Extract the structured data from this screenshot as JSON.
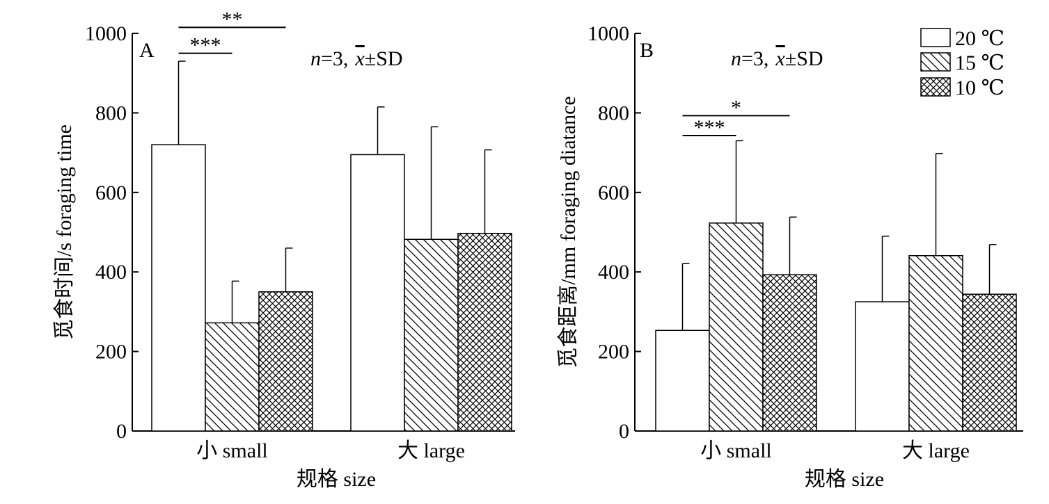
{
  "chart_data": [
    {
      "type": "bar",
      "panel": "A",
      "annotation": {
        "n_label": "n",
        "n_value": "=3,",
        "mean_symbol": "x",
        "sd": "±SD"
      },
      "categories": [
        "小 small",
        "大 large"
      ],
      "xlabel": "规格 size",
      "ylabel": "觅食时间/s foraging time",
      "ylim": [
        0,
        1000
      ],
      "yticks": [
        0,
        200,
        400,
        600,
        800,
        1000
      ],
      "series": [
        {
          "name": "20 ℃",
          "pattern": "blank",
          "values": [
            720,
            695
          ],
          "errors": [
            210,
            120
          ]
        },
        {
          "name": "15 ℃",
          "pattern": "diagonal",
          "values": [
            272,
            482
          ],
          "errors": [
            105,
            283
          ]
        },
        {
          "name": "10 ℃",
          "pattern": "crosshatch",
          "values": [
            350,
            497
          ],
          "errors": [
            110,
            210
          ]
        }
      ],
      "significance": [
        {
          "label": "***",
          "from_series": 0,
          "to_series": 1,
          "category": 0,
          "y": 950
        },
        {
          "label": "**",
          "from_series": 0,
          "to_series": 2,
          "category": 0,
          "y": 1015
        }
      ]
    },
    {
      "type": "bar",
      "panel": "B",
      "annotation": {
        "n_label": "n",
        "n_value": "=3,",
        "mean_symbol": "x",
        "sd": "±SD"
      },
      "categories": [
        "小 small",
        "大 large"
      ],
      "xlabel": "规格 size",
      "ylabel": "觅食距离/mm foraging diatance",
      "ylim": [
        0,
        1000
      ],
      "yticks": [
        0,
        200,
        400,
        600,
        800,
        1000
      ],
      "series": [
        {
          "name": "20 ℃",
          "pattern": "blank",
          "values": [
            253,
            325
          ],
          "errors": [
            168,
            165
          ]
        },
        {
          "name": "15 ℃",
          "pattern": "diagonal",
          "values": [
            523,
            441
          ],
          "errors": [
            207,
            257
          ]
        },
        {
          "name": "10 ℃",
          "pattern": "crosshatch",
          "values": [
            393,
            344
          ],
          "errors": [
            145,
            125
          ]
        }
      ],
      "significance": [
        {
          "label": "***",
          "from_series": 0,
          "to_series": 1,
          "category": 0,
          "y": 743
        },
        {
          "label": "*",
          "from_series": 0,
          "to_series": 2,
          "category": 0,
          "y": 793
        }
      ],
      "legend": {
        "placement": "top-right",
        "entries": [
          "20 ℃",
          "15 ℃",
          "10 ℃"
        ]
      }
    }
  ]
}
